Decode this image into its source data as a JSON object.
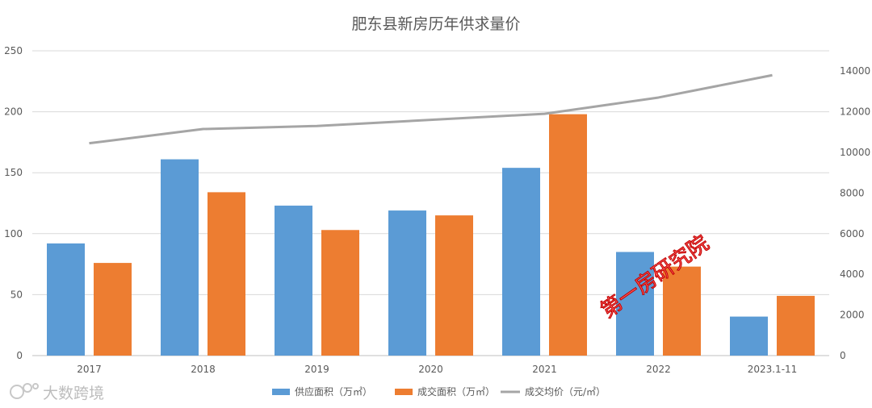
{
  "chart_data": {
    "type": "bar",
    "title": "肥东县新房历年供求量价",
    "categories": [
      "2017",
      "2018",
      "2019",
      "2020",
      "2021",
      "2022",
      "2023.1-11"
    ],
    "ylim": [
      0,
      250
    ],
    "y_ticks": [
      "0",
      "50",
      "100",
      "150",
      "200",
      "250"
    ],
    "y2lim": [
      0,
      15000
    ],
    "y2_ticks": [
      "0",
      "2000",
      "4000",
      "6000",
      "8000",
      "10000",
      "12000",
      "14000"
    ],
    "grid": true,
    "legend_position": "bottom",
    "series": [
      {
        "name": "供应面积（万㎡）",
        "type": "bar",
        "axis": "left",
        "color": "#5b9bd5",
        "values": [
          92,
          161,
          123,
          119,
          154,
          85,
          32
        ]
      },
      {
        "name": "成交面积（万㎡）",
        "type": "bar",
        "axis": "left",
        "color": "#ed7d31",
        "values": [
          76,
          134,
          103,
          115,
          198,
          73,
          49
        ]
      },
      {
        "name": "成交均价（元/㎡）",
        "type": "line",
        "axis": "right",
        "color": "#a5a5a5",
        "values": [
          10450,
          11150,
          11300,
          11600,
          11900,
          12700,
          13800
        ]
      }
    ]
  },
  "overlay": {
    "stamp_text": "第一房研究院",
    "watermark_text": "大数跨境",
    "watermark_icon": "weibo-like-logo-icon"
  }
}
